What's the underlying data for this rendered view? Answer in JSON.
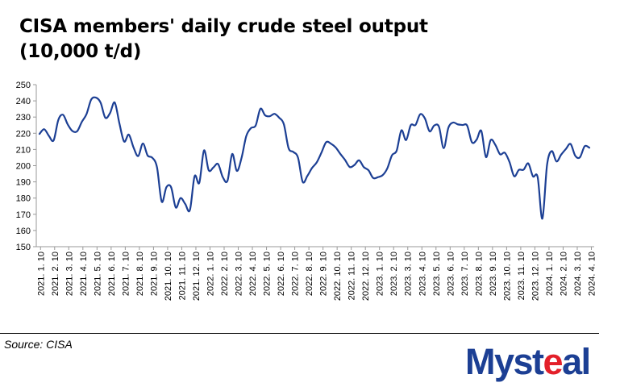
{
  "title_line1": "CISA members' daily crude steel output",
  "title_line2": "(10,000 t/d)",
  "source": "Source: CISA",
  "logo": {
    "text_before": "Myst",
    "text_accent": "e",
    "text_after": "al",
    "brand_color": "#1c3f94",
    "accent_color": "#e3202a"
  },
  "chart_data": {
    "type": "line",
    "title": "CISA members' daily crude steel output (10,000 t/d)",
    "ylim": [
      150,
      250
    ],
    "yticks": [
      150,
      160,
      170,
      180,
      190,
      200,
      210,
      220,
      230,
      240,
      250
    ],
    "grid": false,
    "line_color": "#1c3f94",
    "xticks": [
      "2021. 1. 10",
      "2021. 2. 10",
      "2021. 3. 10",
      "2021. 4. 10",
      "2021. 5. 10",
      "2021. 6. 10",
      "2021. 7. 10",
      "2021. 8. 10",
      "2021. 9. 10",
      "2021. 10. 10",
      "2021. 11. 10",
      "2021. 12. 10",
      "2022. 1. 10",
      "2022. 2. 10",
      "2022. 3. 10",
      "2022. 4. 10",
      "2022. 5. 10",
      "2022. 6. 10",
      "2022. 7. 10",
      "2022. 8. 10",
      "2022. 9. 10",
      "2022. 10. 10",
      "2022. 11. 10",
      "2022. 12. 10",
      "2023. 1. 10",
      "2023. 2. 10",
      "2023. 3. 10",
      "2023. 4. 10",
      "2023. 5. 10",
      "2023. 6. 10",
      "2023. 7. 10",
      "2023. 8. 10",
      "2023. 9. 10",
      "2023. 10. 10",
      "2023. 11. 10",
      "2023. 12. 10",
      "2024. 1. 10",
      "2024. 2. 10",
      "2024. 3. 10",
      "2024. 4. 10"
    ],
    "values": [
      219.6,
      222.5,
      218.4,
      215.6,
      228.2,
      231.4,
      225.5,
      221.4,
      221.2,
      227.0,
      231.8,
      240.8,
      242.0,
      238.9,
      229.6,
      232.4,
      239.0,
      226.1,
      214.9,
      219.2,
      211.3,
      205.9,
      213.7,
      206.3,
      204.9,
      199.0,
      177.8,
      186.7,
      186.7,
      174.2,
      180.0,
      176.4,
      172.6,
      193.5,
      189.4,
      209.4,
      197.2,
      198.9,
      201.0,
      192.9,
      190.7,
      207.2,
      196.8,
      204.9,
      218.3,
      223.2,
      224.8,
      235.1,
      231.1,
      230.5,
      232.0,
      229.6,
      225.5,
      210.8,
      208.5,
      205.0,
      190.0,
      193.7,
      198.6,
      202.1,
      208.1,
      214.5,
      213.6,
      211.3,
      207.3,
      203.6,
      199.2,
      200.4,
      203.3,
      199.1,
      197.2,
      192.4,
      192.9,
      194.1,
      198.3,
      206.4,
      209.3,
      221.8,
      215.8,
      225.0,
      225.1,
      231.7,
      229.2,
      221.2,
      224.8,
      224.0,
      210.8,
      223.4,
      226.6,
      225.5,
      225.1,
      224.7,
      214.5,
      216.0,
      221.5,
      205.3,
      215.8,
      212.8,
      207.0,
      208.0,
      202.3,
      193.5,
      197.4,
      197.5,
      201.4,
      193.4,
      192.9,
      167.3,
      200.6,
      209.0,
      202.6,
      206.8,
      210.3,
      213.4,
      206.1,
      205.2,
      212.0,
      211.1
    ]
  }
}
